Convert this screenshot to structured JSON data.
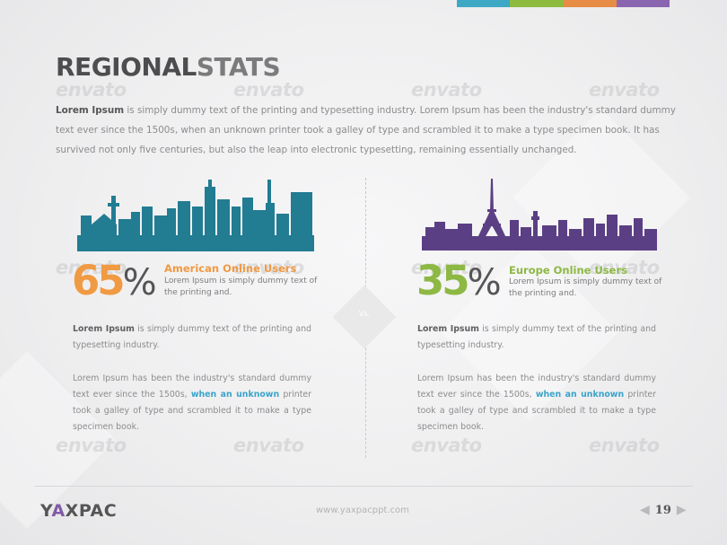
{
  "colors": {
    "bar": [
      "#3ea9c5",
      "#8dbb3f",
      "#e78c45",
      "#8a66b1"
    ],
    "teal": "#227c92",
    "purple": "#5b3f84",
    "orange": "#f09a43",
    "green": "#8db843",
    "link": "#3aa3c9"
  },
  "header": {
    "title_part1": "REGIONAL",
    "title_part2": "STATS",
    "intro_lead": "Lorem Ipsum",
    "intro_body": " is simply dummy text of the printing and typesetting industry. Lorem Ipsum has been the industry's standard dummy text ever since the 1500s, when an unknown printer took a galley of type and scrambled it to make a type specimen book. It has survived not only five centuries, but also the leap into electronic typesetting, remaining essentially unchanged."
  },
  "vs_label": "Vs.",
  "left": {
    "percent": "65",
    "percent_symbol": "%",
    "stat_title": "American Online Users",
    "stat_desc": "Lorem Ipsum is simply dummy text of the printing and.",
    "p1_lead": "Lorem Ipsum",
    "p1_body": " is simply dummy text of the printing and typesetting industry.",
    "p2_before": "Lorem Ipsum has been the industry's standard dummy text ever since the 1500s, ",
    "p2_highlight": "when an unknown",
    "p2_after": " printer took a galley of type and scrambled it to make a type specimen book."
  },
  "right": {
    "percent": "35",
    "percent_symbol": "%",
    "stat_title": "Europe Online Users",
    "stat_desc": "Lorem Ipsum is simply dummy text of the printing and.",
    "p1_lead": "Lorem Ipsum",
    "p1_body": " is simply dummy text of the printing and typesetting industry.",
    "p2_before": "Lorem Ipsum has been the industry's standard dummy text ever since the 1500s, ",
    "p2_highlight": "when an unknown",
    "p2_after": " printer took a galley of type and scrambled it to make a type specimen book."
  },
  "watermark_text": "envato",
  "footer": {
    "logo_part1": "Y",
    "logo_part2": "A",
    "logo_part3": "XPAC",
    "url": "www.yaxpacppt.com",
    "page_number": "19",
    "prev_icon": "chevron-left-icon",
    "next_icon": "chevron-right-icon"
  }
}
